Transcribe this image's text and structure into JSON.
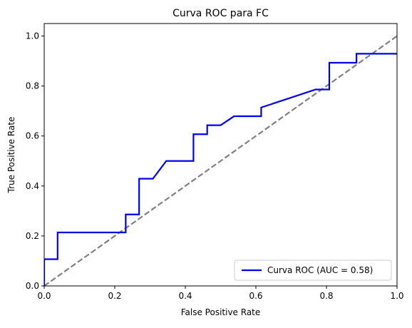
{
  "chart_data": {
    "type": "line",
    "title": "Curva ROC para FC",
    "xlabel": "False Positive Rate",
    "ylabel": "True Positive Rate",
    "xlim": [
      0.0,
      1.0
    ],
    "ylim": [
      0.0,
      1.05
    ],
    "xticks": [
      "0.0",
      "0.2",
      "0.4",
      "0.6",
      "0.8",
      "1.0"
    ],
    "yticks": [
      "0.0",
      "0.2",
      "0.4",
      "0.6",
      "0.8",
      "1.0"
    ],
    "xtick_values": [
      0.0,
      0.2,
      0.4,
      0.6,
      0.8,
      1.0
    ],
    "ytick_values": [
      0.0,
      0.2,
      0.4,
      0.6,
      0.8,
      1.0
    ],
    "grid": false,
    "legend_position": "lower-right",
    "series": [
      {
        "name": "Curva ROC (AUC = 0.58)",
        "color": "#0000ee",
        "style": "solid",
        "x": [
          0.0,
          0.0,
          0.038,
          0.038,
          0.231,
          0.231,
          0.269,
          0.269,
          0.308,
          0.346,
          0.423,
          0.423,
          0.462,
          0.462,
          0.5,
          0.538,
          0.615,
          0.615,
          0.769,
          0.808,
          0.808,
          0.885,
          0.885,
          1.0
        ],
        "y": [
          0.0,
          0.107,
          0.107,
          0.214,
          0.214,
          0.286,
          0.286,
          0.429,
          0.429,
          0.5,
          0.5,
          0.607,
          0.607,
          0.643,
          0.643,
          0.679,
          0.679,
          0.714,
          0.786,
          0.786,
          0.893,
          0.893,
          0.929,
          0.929
        ]
      },
      {
        "color": "#808080",
        "style": "dashed",
        "x": [
          0.0,
          1.0
        ],
        "y": [
          0.0,
          1.0
        ]
      }
    ]
  }
}
